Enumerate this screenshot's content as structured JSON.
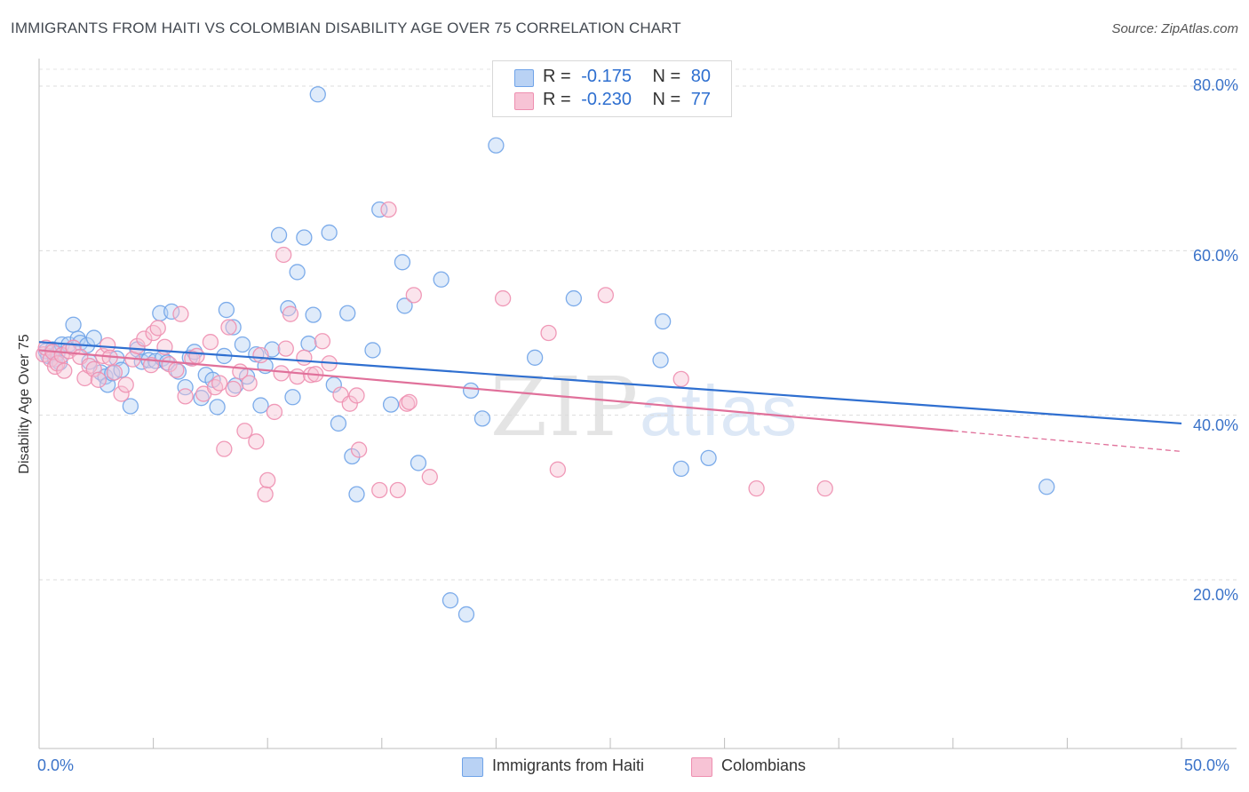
{
  "title": "IMMIGRANTS FROM HAITI VS COLOMBIAN DISABILITY AGE OVER 75 CORRELATION CHART",
  "source": "Source: ZipAtlas.com",
  "watermark": {
    "zip": "ZIP",
    "atlas": "atlas"
  },
  "legend": {
    "haiti": {
      "r_label": "R =",
      "r_value": "-0.175",
      "n_label": "N =",
      "n_value": "80"
    },
    "colombians": {
      "r_label": "R =",
      "r_value": "-0.230",
      "n_label": "N =",
      "n_value": "77"
    }
  },
  "colors": {
    "haiti": "#6fa3e8",
    "haiti_fill": "#b9d2f4",
    "haiti_line": "#2f6fd0",
    "colombians": "#ee8fb0",
    "colombians_fill": "#f7c3d5",
    "colombians_line": "#e0709a"
  },
  "chart_data": {
    "type": "scatter",
    "title": "IMMIGRANTS FROM HAITI VS COLOMBIAN DISABILITY AGE OVER 75 CORRELATION CHART",
    "xlabel": "",
    "ylabel": "Disability Age Over 75",
    "xlim": [
      0,
      50
    ],
    "ylim": [
      0,
      82
    ],
    "x_tick_labels": [
      "0.0%",
      "50.0%"
    ],
    "y_ticks": [
      20,
      40,
      60,
      80
    ],
    "y_tick_labels": [
      "20.0%",
      "40.0%",
      "60.0%",
      "80.0%"
    ],
    "grid": "horizontal dashed",
    "legend_position": "top-center",
    "series": [
      {
        "name": "Immigrants from Haiti",
        "points": [
          [
            0.3,
            47.8
          ],
          [
            0.4,
            47.2
          ],
          [
            0.6,
            48.0
          ],
          [
            0.7,
            46.8
          ],
          [
            0.8,
            47.5
          ],
          [
            0.9,
            46.4
          ],
          [
            1.0,
            48.6
          ],
          [
            1.3,
            48.6
          ],
          [
            1.5,
            51.0
          ],
          [
            1.7,
            49.3
          ],
          [
            1.8,
            48.8
          ],
          [
            2.1,
            48.5
          ],
          [
            2.2,
            46.5
          ],
          [
            2.4,
            49.4
          ],
          [
            2.7,
            45.2
          ],
          [
            2.9,
            44.7
          ],
          [
            3.0,
            43.7
          ],
          [
            3.2,
            45.1
          ],
          [
            3.4,
            46.9
          ],
          [
            3.6,
            45.5
          ],
          [
            4.0,
            41.1
          ],
          [
            4.3,
            48.0
          ],
          [
            4.5,
            46.5
          ],
          [
            4.8,
            46.7
          ],
          [
            5.1,
            46.6
          ],
          [
            5.3,
            52.4
          ],
          [
            5.4,
            46.9
          ],
          [
            5.6,
            46.4
          ],
          [
            5.8,
            52.6
          ],
          [
            6.1,
            45.3
          ],
          [
            6.4,
            43.4
          ],
          [
            6.6,
            47.0
          ],
          [
            6.8,
            47.7
          ],
          [
            7.1,
            42.1
          ],
          [
            7.3,
            44.9
          ],
          [
            7.6,
            44.3
          ],
          [
            7.8,
            41.0
          ],
          [
            8.1,
            47.2
          ],
          [
            8.2,
            52.8
          ],
          [
            8.5,
            50.7
          ],
          [
            8.6,
            43.6
          ],
          [
            8.9,
            48.6
          ],
          [
            9.1,
            44.7
          ],
          [
            9.5,
            47.4
          ],
          [
            9.7,
            41.2
          ],
          [
            9.9,
            46.0
          ],
          [
            10.2,
            48.0
          ],
          [
            10.5,
            61.9
          ],
          [
            10.9,
            53.0
          ],
          [
            11.1,
            42.2
          ],
          [
            11.3,
            57.4
          ],
          [
            11.6,
            61.6
          ],
          [
            11.8,
            48.7
          ],
          [
            12.0,
            52.2
          ],
          [
            12.2,
            79.0
          ],
          [
            12.7,
            62.2
          ],
          [
            12.9,
            43.7
          ],
          [
            13.1,
            39.0
          ],
          [
            13.5,
            52.4
          ],
          [
            13.7,
            35.0
          ],
          [
            13.9,
            30.4
          ],
          [
            14.6,
            47.9
          ],
          [
            14.9,
            65.0
          ],
          [
            15.4,
            41.3
          ],
          [
            15.9,
            58.6
          ],
          [
            16.0,
            53.3
          ],
          [
            16.6,
            34.2
          ],
          [
            17.6,
            56.5
          ],
          [
            18.0,
            17.5
          ],
          [
            18.7,
            15.8
          ],
          [
            18.9,
            43.0
          ],
          [
            19.4,
            39.6
          ],
          [
            20.0,
            72.8
          ],
          [
            21.7,
            47.0
          ],
          [
            23.4,
            54.2
          ],
          [
            27.2,
            46.7
          ],
          [
            27.3,
            51.4
          ],
          [
            28.1,
            33.5
          ],
          [
            29.3,
            34.8
          ],
          [
            44.1,
            31.3
          ]
        ],
        "trend": {
          "x": [
            0,
            50
          ],
          "y": [
            48.9,
            39.0
          ]
        }
      },
      {
        "name": "Colombians",
        "points": [
          [
            0.2,
            47.4
          ],
          [
            0.3,
            48.2
          ],
          [
            0.5,
            46.8
          ],
          [
            0.6,
            47.7
          ],
          [
            0.7,
            45.9
          ],
          [
            0.8,
            46.3
          ],
          [
            1.0,
            47.3
          ],
          [
            1.1,
            45.4
          ],
          [
            1.3,
            47.8
          ],
          [
            1.5,
            48.2
          ],
          [
            1.8,
            47.1
          ],
          [
            2.0,
            44.5
          ],
          [
            2.2,
            46.0
          ],
          [
            2.4,
            45.6
          ],
          [
            2.6,
            44.3
          ],
          [
            2.8,
            47.2
          ],
          [
            3.0,
            48.5
          ],
          [
            3.1,
            47.0
          ],
          [
            3.3,
            45.2
          ],
          [
            3.6,
            42.6
          ],
          [
            3.8,
            43.7
          ],
          [
            4.1,
            46.8
          ],
          [
            4.3,
            48.4
          ],
          [
            4.6,
            49.3
          ],
          [
            4.9,
            46.1
          ],
          [
            5.0,
            50.0
          ],
          [
            5.2,
            50.6
          ],
          [
            5.5,
            48.3
          ],
          [
            5.7,
            46.2
          ],
          [
            6.0,
            45.5
          ],
          [
            6.2,
            52.3
          ],
          [
            6.4,
            42.3
          ],
          [
            6.7,
            46.9
          ],
          [
            6.9,
            47.2
          ],
          [
            7.2,
            42.6
          ],
          [
            7.5,
            48.9
          ],
          [
            7.7,
            43.4
          ],
          [
            7.9,
            43.9
          ],
          [
            8.1,
            35.9
          ],
          [
            8.3,
            50.7
          ],
          [
            8.5,
            43.2
          ],
          [
            8.8,
            45.3
          ],
          [
            9.0,
            38.1
          ],
          [
            9.2,
            43.9
          ],
          [
            9.5,
            36.8
          ],
          [
            9.7,
            47.3
          ],
          [
            9.9,
            30.4
          ],
          [
            10.0,
            32.1
          ],
          [
            10.3,
            40.4
          ],
          [
            10.6,
            45.1
          ],
          [
            10.7,
            59.5
          ],
          [
            10.8,
            48.1
          ],
          [
            11.0,
            52.3
          ],
          [
            11.3,
            44.7
          ],
          [
            11.6,
            47.0
          ],
          [
            11.9,
            44.9
          ],
          [
            12.1,
            45.0
          ],
          [
            12.4,
            49.0
          ],
          [
            12.7,
            46.3
          ],
          [
            13.2,
            42.5
          ],
          [
            13.6,
            41.4
          ],
          [
            13.9,
            42.4
          ],
          [
            14.0,
            35.8
          ],
          [
            14.9,
            30.9
          ],
          [
            15.3,
            65.0
          ],
          [
            15.7,
            30.9
          ],
          [
            16.1,
            41.4
          ],
          [
            16.2,
            41.6
          ],
          [
            16.4,
            54.6
          ],
          [
            17.1,
            32.5
          ],
          [
            20.3,
            54.2
          ],
          [
            22.3,
            50.0
          ],
          [
            22.7,
            33.4
          ],
          [
            24.8,
            54.6
          ],
          [
            28.1,
            44.4
          ],
          [
            31.4,
            31.1
          ],
          [
            34.4,
            31.1
          ]
        ],
        "trend": {
          "x": [
            0,
            40
          ],
          "y": [
            47.9,
            38.1
          ]
        },
        "trend_dashed": {
          "x": [
            40,
            50
          ],
          "y": [
            38.1,
            35.6
          ]
        }
      }
    ]
  },
  "bottom_legend": {
    "haiti": "Immigrants from Haiti",
    "colombians": "Colombians"
  }
}
